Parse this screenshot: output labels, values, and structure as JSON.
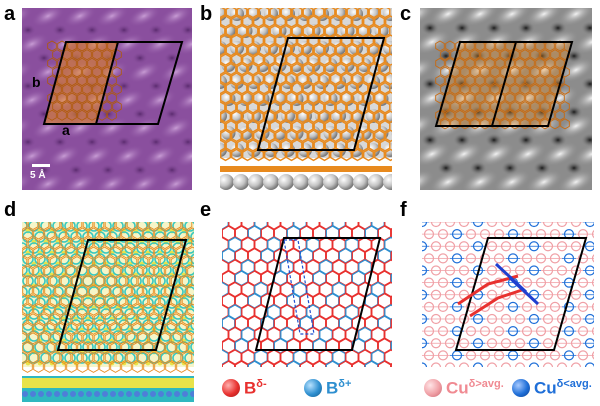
{
  "panels": [
    {
      "letter": "a"
    },
    {
      "letter": "b"
    },
    {
      "letter": "c"
    },
    {
      "letter": "d"
    },
    {
      "letter": "e"
    },
    {
      "letter": "f"
    }
  ],
  "panel_a": {
    "axis_b": "b",
    "axis_a": "a",
    "scale_bar": "5 Å"
  },
  "legend": {
    "b_minus": {
      "base": "B",
      "sup": "δ-",
      "color": "#e8312f"
    },
    "b_plus": {
      "base": "B",
      "sup": "δ+",
      "color": "#2e8fd0"
    },
    "cu_gt": {
      "base": "Cu",
      "sup": "δ>avg.",
      "color": "#f0a0a6"
    },
    "cu_lt": {
      "base": "Cu",
      "sup": "δ<avg.",
      "color": "#1f6fd8"
    }
  },
  "colors": {
    "stm_purple": "#8a4f9e",
    "boron_orange": "#e88a1e",
    "copper_gray": "#b8b8b8",
    "charge_yellow": "#e8e34a",
    "charge_cyan": "#39c8c0",
    "red": "#e8312f",
    "blue": "#2e8fd0"
  }
}
